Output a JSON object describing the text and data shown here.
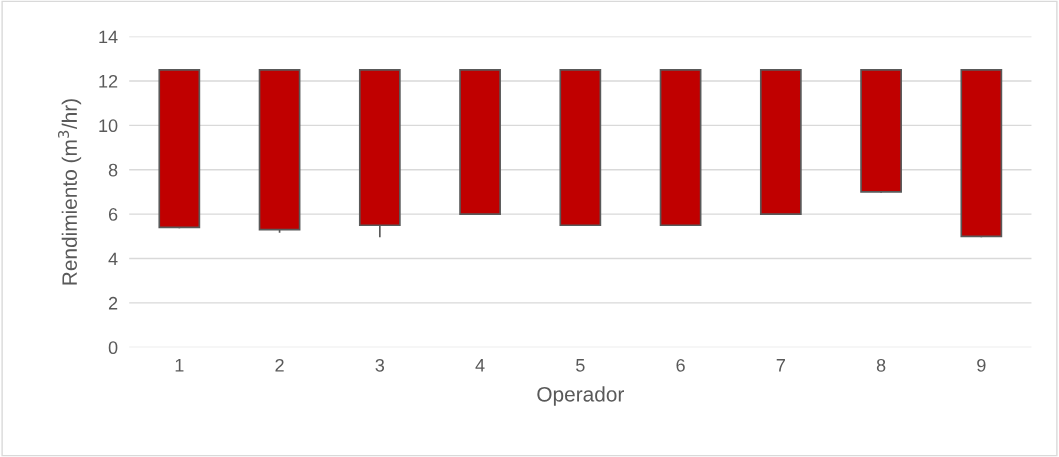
{
  "chart_data": {
    "type": "candlestick",
    "xlabel": "Operador",
    "ylabel": "Rendimiento (m$^{3}$/hr)",
    "categories": [
      "1",
      "2",
      "3",
      "4",
      "5",
      "6",
      "7",
      "8",
      "9"
    ],
    "ohlc": [
      [
        12.5,
        12.5,
        5.4,
        5.4
      ],
      [
        12.5,
        12.5,
        5.2,
        5.3
      ],
      [
        12.5,
        12.5,
        5.0,
        5.5
      ],
      [
        12.5,
        12.5,
        6.0,
        6.0
      ],
      [
        12.5,
        12.5,
        5.5,
        5.5
      ],
      [
        12.5,
        12.5,
        5.5,
        5.5
      ],
      [
        12.5,
        12.5,
        6.0,
        6.0
      ],
      [
        12.5,
        12.5,
        7.0,
        7.0
      ],
      [
        12.5,
        12.5,
        5.0,
        5.0
      ]
    ],
    "color": "#c00000",
    "ylim": [
      0,
      14
    ],
    "yticks": [
      0,
      2,
      4,
      6,
      8,
      10,
      12,
      14
    ],
    "grid": "y"
  }
}
